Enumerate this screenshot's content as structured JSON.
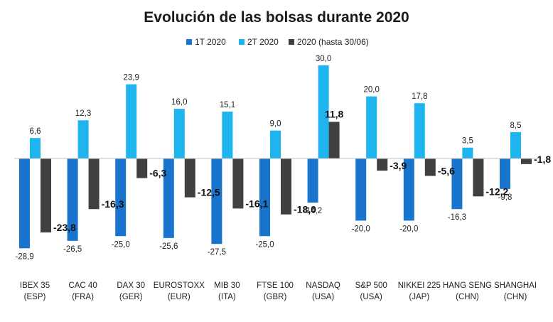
{
  "chart_data": {
    "type": "bar",
    "title": "Evolución de las bolsas durante 2020",
    "categories": [
      [
        "IBEX 35",
        "(ESP)"
      ],
      [
        "CAC 40",
        "(FRA)"
      ],
      [
        "DAX 30",
        "(GER)"
      ],
      [
        "EUROSTOXX",
        "(EUR)"
      ],
      [
        "MIB 30",
        "(ITA)"
      ],
      [
        "FTSE 100",
        "(GBR)"
      ],
      [
        "NASDAQ",
        "(USA)"
      ],
      [
        "S&P 500",
        "(USA)"
      ],
      [
        "NIKKEI 225",
        "(JAP)"
      ],
      [
        "HANG SENG",
        "(CHN)"
      ],
      [
        "SHANGHAI",
        "(CHN)"
      ]
    ],
    "series": [
      {
        "name": "1T 2020",
        "color": "#1874cd",
        "values": [
          -28.9,
          -26.5,
          -25.0,
          -25.6,
          -27.5,
          -25.0,
          -14.2,
          -20.0,
          -20.0,
          -16.3,
          -9.8
        ],
        "labels": [
          "-28,9",
          "-26,5",
          "-25,0",
          "-25,6",
          "-27,5",
          "-25,0",
          "-14,2",
          "-20,0",
          "-20,0",
          "-16,3",
          "-9,8"
        ]
      },
      {
        "name": "2T 2020",
        "color": "#1eb4ee",
        "values": [
          6.6,
          12.3,
          23.9,
          16.0,
          15.1,
          9.0,
          30.0,
          20.0,
          17.8,
          3.5,
          8.5
        ],
        "labels": [
          "6,6",
          "12,3",
          "23,9",
          "16,0",
          "15,1",
          "9,0",
          "30,0",
          "20,0",
          "17,8",
          "3,5",
          "8,5"
        ]
      },
      {
        "name": "2020 (hasta 30/06)",
        "color": "#404040",
        "values": [
          -23.8,
          -16.3,
          -6.3,
          -12.5,
          -16.1,
          -18.0,
          11.8,
          -3.9,
          -5.6,
          -12.2,
          -1.8
        ],
        "labels": [
          "-23,8",
          "-16,3",
          "-6,3",
          "-12,5",
          "-16,1",
          "-18,0",
          "11,8",
          "-3,9",
          "-5,6",
          "-12,2",
          "-1,8"
        ]
      }
    ],
    "legend_position": "top",
    "grid": false
  }
}
